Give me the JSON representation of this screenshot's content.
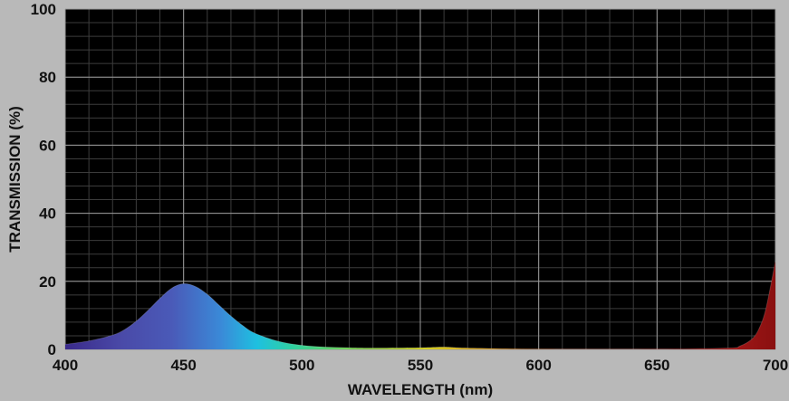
{
  "chart_data": {
    "type": "area",
    "xlabel": "WAVELENGTH (nm)",
    "ylabel": "TRANSMISSION (%)",
    "xlim": [
      400,
      700
    ],
    "ylim": [
      0,
      100
    ],
    "x_ticks": [
      400,
      450,
      500,
      550,
      600,
      650,
      700
    ],
    "y_ticks": [
      0,
      20,
      40,
      60,
      80,
      100
    ],
    "grid": true,
    "fill": "visible-spectrum gradient",
    "series": [
      {
        "x": [
          400,
          410,
          420,
          425,
          430,
          435,
          440,
          445,
          450,
          455,
          460,
          465,
          470,
          475,
          480,
          490,
          500,
          510,
          520,
          530,
          550,
          560,
          570,
          600,
          650,
          680,
          685,
          690,
          693,
          696,
          700
        ],
        "values": [
          1.5,
          2.5,
          4.2,
          5.8,
          8.3,
          11.5,
          15.0,
          18.0,
          19.3,
          18.5,
          16.2,
          13.0,
          9.8,
          7.0,
          4.8,
          2.4,
          1.2,
          0.7,
          0.5,
          0.4,
          0.5,
          0.7,
          0.4,
          0.1,
          0.1,
          0.4,
          1.0,
          3.0,
          6.0,
          12.0,
          26.0
        ]
      }
    ]
  }
}
